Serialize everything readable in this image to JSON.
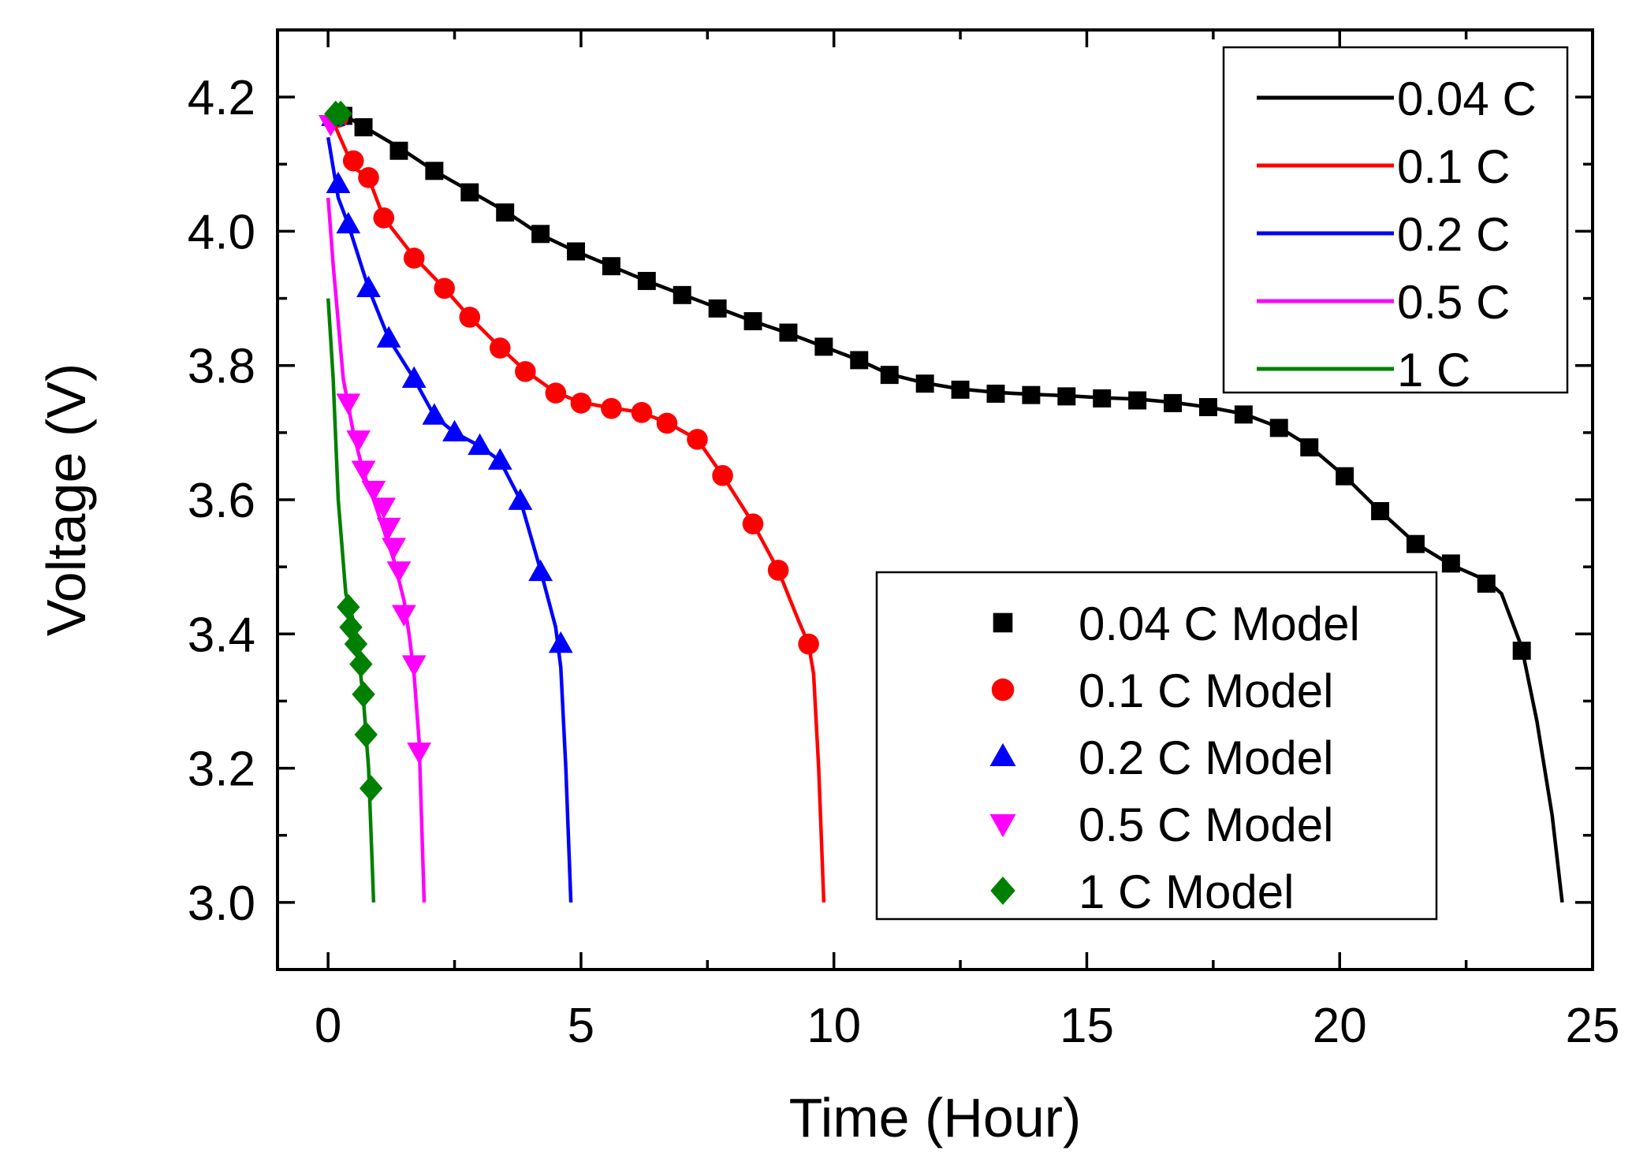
{
  "chart_data": {
    "type": "line",
    "title": "",
    "xlabel": "Time (Hour)",
    "ylabel": "Voltage (V)",
    "xlim": [
      -1,
      25
    ],
    "ylim": [
      2.9,
      4.3
    ],
    "xticks": [
      "0",
      "5",
      "10",
      "15",
      "20",
      "25"
    ],
    "yticks": [
      "3.0",
      "3.2",
      "3.4",
      "3.6",
      "3.8",
      "4.0",
      "4.2"
    ],
    "xtick_values": [
      0,
      5,
      10,
      15,
      20,
      25
    ],
    "ytick_values": [
      3.0,
      3.2,
      3.4,
      3.6,
      3.8,
      4.0,
      4.2
    ],
    "grid": false,
    "legend_lines_position": "top-right",
    "legend_markers_position": "bottom-right",
    "series": [
      {
        "name": "0.04 C",
        "model_name": "0.04 C Model",
        "color": "#000000",
        "marker": "square",
        "curve": [
          [
            0,
            4.18
          ],
          [
            0.5,
            4.165
          ],
          [
            1.4,
            4.125
          ],
          [
            2.1,
            4.09
          ],
          [
            2.8,
            4.06
          ],
          [
            3.5,
            4.03
          ],
          [
            4.2,
            3.995
          ],
          [
            4.9,
            3.97
          ],
          [
            5.6,
            3.948
          ],
          [
            6.3,
            3.926
          ],
          [
            7.0,
            3.906
          ],
          [
            7.7,
            3.886
          ],
          [
            8.4,
            3.866
          ],
          [
            9.1,
            3.848
          ],
          [
            9.8,
            3.828
          ],
          [
            10.5,
            3.808
          ],
          [
            11.1,
            3.787
          ],
          [
            11.8,
            3.774
          ],
          [
            12.5,
            3.765
          ],
          [
            13.2,
            3.76
          ],
          [
            13.9,
            3.757
          ],
          [
            14.6,
            3.755
          ],
          [
            15.3,
            3.752
          ],
          [
            16.0,
            3.75
          ],
          [
            16.7,
            3.745
          ],
          [
            17.4,
            3.738
          ],
          [
            18.1,
            3.728
          ],
          [
            18.8,
            3.708
          ],
          [
            19.4,
            3.68
          ],
          [
            20.1,
            3.635
          ],
          [
            20.8,
            3.583
          ],
          [
            21.5,
            3.535
          ],
          [
            22.2,
            3.503
          ],
          [
            22.9,
            3.48
          ],
          [
            23.2,
            3.46
          ],
          [
            23.6,
            3.38
          ],
          [
            23.9,
            3.27
          ],
          [
            24.2,
            3.13
          ],
          [
            24.4,
            3.0
          ]
        ],
        "points": [
          [
            0.3,
            4.172
          ],
          [
            0.7,
            4.155
          ],
          [
            1.4,
            4.12
          ],
          [
            2.1,
            4.09
          ],
          [
            2.8,
            4.058
          ],
          [
            3.5,
            4.028
          ],
          [
            4.2,
            3.996
          ],
          [
            4.9,
            3.97
          ],
          [
            5.6,
            3.948
          ],
          [
            6.3,
            3.926
          ],
          [
            7.0,
            3.905
          ],
          [
            7.7,
            3.885
          ],
          [
            8.4,
            3.866
          ],
          [
            9.1,
            3.849
          ],
          [
            9.8,
            3.828
          ],
          [
            10.5,
            3.808
          ],
          [
            11.1,
            3.786
          ],
          [
            11.8,
            3.773
          ],
          [
            12.5,
            3.764
          ],
          [
            13.2,
            3.758
          ],
          [
            13.9,
            3.756
          ],
          [
            14.6,
            3.754
          ],
          [
            15.3,
            3.751
          ],
          [
            16.0,
            3.748
          ],
          [
            16.7,
            3.744
          ],
          [
            17.4,
            3.738
          ],
          [
            18.1,
            3.727
          ],
          [
            18.8,
            3.707
          ],
          [
            19.4,
            3.678
          ],
          [
            20.1,
            3.635
          ],
          [
            20.8,
            3.583
          ],
          [
            21.5,
            3.534
          ],
          [
            22.2,
            3.505
          ],
          [
            22.9,
            3.475
          ],
          [
            23.6,
            3.375
          ]
        ]
      },
      {
        "name": "0.1 C",
        "model_name": "0.1 C Model",
        "color": "#ff0000",
        "marker": "circle",
        "curve": [
          [
            0,
            4.18
          ],
          [
            0.5,
            4.095
          ],
          [
            0.8,
            4.08
          ],
          [
            1.1,
            4.02
          ],
          [
            1.7,
            3.962
          ],
          [
            2.3,
            3.915
          ],
          [
            2.8,
            3.872
          ],
          [
            3.4,
            3.827
          ],
          [
            3.9,
            3.792
          ],
          [
            4.5,
            3.76
          ],
          [
            5.0,
            3.745
          ],
          [
            5.6,
            3.737
          ],
          [
            6.2,
            3.73
          ],
          [
            6.7,
            3.715
          ],
          [
            7.3,
            3.69
          ],
          [
            7.8,
            3.636
          ],
          [
            8.4,
            3.565
          ],
          [
            8.9,
            3.495
          ],
          [
            9.3,
            3.42
          ],
          [
            9.5,
            3.385
          ],
          [
            9.6,
            3.34
          ],
          [
            9.7,
            3.2
          ],
          [
            9.8,
            3.0
          ]
        ],
        "points": [
          [
            0.2,
            4.17
          ],
          [
            0.5,
            4.105
          ],
          [
            0.8,
            4.08
          ],
          [
            1.1,
            4.02
          ],
          [
            1.7,
            3.96
          ],
          [
            2.3,
            3.915
          ],
          [
            2.8,
            3.872
          ],
          [
            3.4,
            3.826
          ],
          [
            3.9,
            3.791
          ],
          [
            4.5,
            3.759
          ],
          [
            5.0,
            3.744
          ],
          [
            5.6,
            3.736
          ],
          [
            6.2,
            3.73
          ],
          [
            6.7,
            3.714
          ],
          [
            7.3,
            3.69
          ],
          [
            7.8,
            3.636
          ],
          [
            8.4,
            3.564
          ],
          [
            8.9,
            3.495
          ],
          [
            9.5,
            3.385
          ]
        ]
      },
      {
        "name": "0.2 C",
        "model_name": "0.2 C Model",
        "color": "#0000ff",
        "marker": "triangle-up",
        "curve": [
          [
            0,
            4.14
          ],
          [
            0.2,
            4.05
          ],
          [
            0.4,
            4.01
          ],
          [
            0.8,
            3.915
          ],
          [
            1.2,
            3.84
          ],
          [
            1.7,
            3.78
          ],
          [
            2.1,
            3.725
          ],
          [
            2.5,
            3.7
          ],
          [
            3.0,
            3.68
          ],
          [
            3.4,
            3.658
          ],
          [
            3.8,
            3.6
          ],
          [
            4.2,
            3.495
          ],
          [
            4.5,
            3.41
          ],
          [
            4.6,
            3.35
          ],
          [
            4.7,
            3.2
          ],
          [
            4.8,
            3.0
          ]
        ],
        "points": [
          [
            0.1,
            4.17
          ],
          [
            0.2,
            4.07
          ],
          [
            0.4,
            4.01
          ],
          [
            0.8,
            3.915
          ],
          [
            1.2,
            3.84
          ],
          [
            1.7,
            3.78
          ],
          [
            2.1,
            3.725
          ],
          [
            2.5,
            3.7
          ],
          [
            3.0,
            3.68
          ],
          [
            3.4,
            3.658
          ],
          [
            3.8,
            3.598
          ],
          [
            4.2,
            3.492
          ],
          [
            4.6,
            3.385
          ]
        ]
      },
      {
        "name": "0.5 C",
        "model_name": "0.5 C Model",
        "color": "#ff00ff",
        "marker": "triangle-down",
        "curve": [
          [
            0,
            4.05
          ],
          [
            0.1,
            3.95
          ],
          [
            0.3,
            3.78
          ],
          [
            0.5,
            3.7
          ],
          [
            0.7,
            3.64
          ],
          [
            0.9,
            3.6
          ],
          [
            1.1,
            3.555
          ],
          [
            1.3,
            3.51
          ],
          [
            1.5,
            3.45
          ],
          [
            1.6,
            3.4
          ],
          [
            1.7,
            3.34
          ],
          [
            1.8,
            3.24
          ],
          [
            1.9,
            3.0
          ]
        ],
        "points": [
          [
            0.05,
            4.16
          ],
          [
            0.4,
            3.745
          ],
          [
            0.6,
            3.69
          ],
          [
            0.7,
            3.645
          ],
          [
            0.9,
            3.615
          ],
          [
            1.1,
            3.59
          ],
          [
            1.2,
            3.56
          ],
          [
            1.3,
            3.53
          ],
          [
            1.4,
            3.495
          ],
          [
            1.5,
            3.43
          ],
          [
            1.7,
            3.355
          ],
          [
            1.8,
            3.225
          ]
        ]
      },
      {
        "name": "1 C",
        "model_name": "1 C Model",
        "color": "#008000",
        "marker": "diamond",
        "curve": [
          [
            0,
            3.9
          ],
          [
            0.1,
            3.78
          ],
          [
            0.2,
            3.6
          ],
          [
            0.35,
            3.46
          ],
          [
            0.5,
            3.42
          ],
          [
            0.6,
            3.37
          ],
          [
            0.7,
            3.3
          ],
          [
            0.8,
            3.2
          ],
          [
            0.9,
            3.0
          ]
        ],
        "points": [
          [
            0.15,
            4.175
          ],
          [
            0.25,
            4.175
          ],
          [
            0.4,
            3.44
          ],
          [
            0.45,
            3.41
          ],
          [
            0.55,
            3.385
          ],
          [
            0.65,
            3.355
          ],
          [
            0.7,
            3.31
          ],
          [
            0.75,
            3.25
          ],
          [
            0.85,
            3.17
          ]
        ]
      }
    ]
  }
}
